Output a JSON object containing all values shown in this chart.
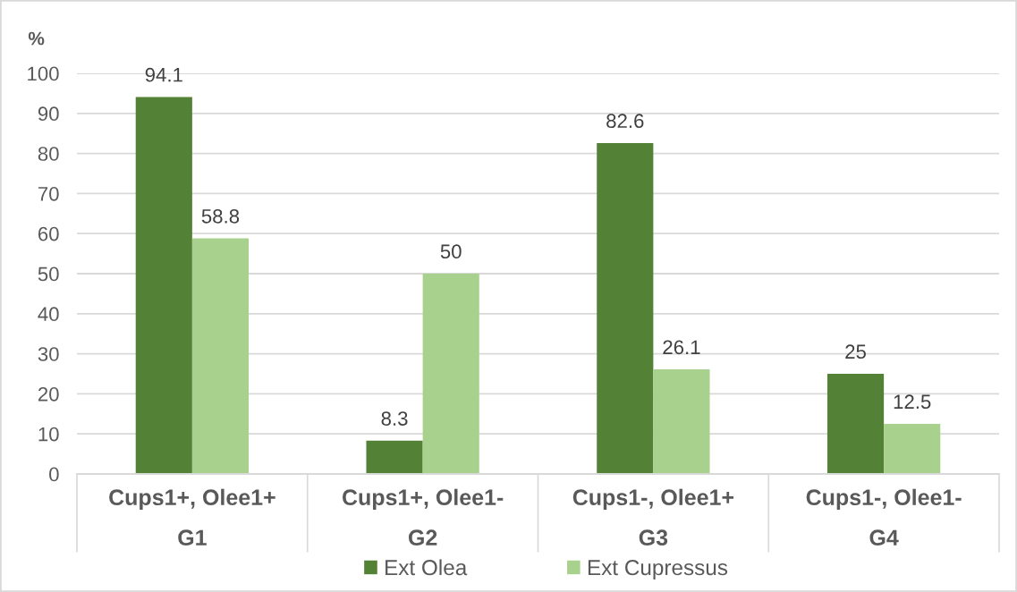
{
  "chart_data": {
    "type": "bar",
    "ylabel": "%",
    "categories": [
      "Cups1+, Olee1+\nG1",
      "Cups1+, Olee1-\nG2",
      "Cups1-, Olee1+\nG3",
      "Cups1-, Olee1-\nG4"
    ],
    "series": [
      {
        "name": "Ext Olea",
        "color": "#538135",
        "values": [
          94.1,
          8.3,
          82.6,
          25
        ]
      },
      {
        "name": "Ext Cupressus",
        "color": "#a9d18e",
        "values": [
          58.8,
          50,
          26.1,
          12.5
        ]
      }
    ],
    "ylim": [
      0,
      100
    ],
    "yticks": [
      0,
      10,
      20,
      30,
      40,
      50,
      60,
      70,
      80,
      90,
      100
    ],
    "grid": "y",
    "legend": "bottom",
    "data_labels": true
  }
}
